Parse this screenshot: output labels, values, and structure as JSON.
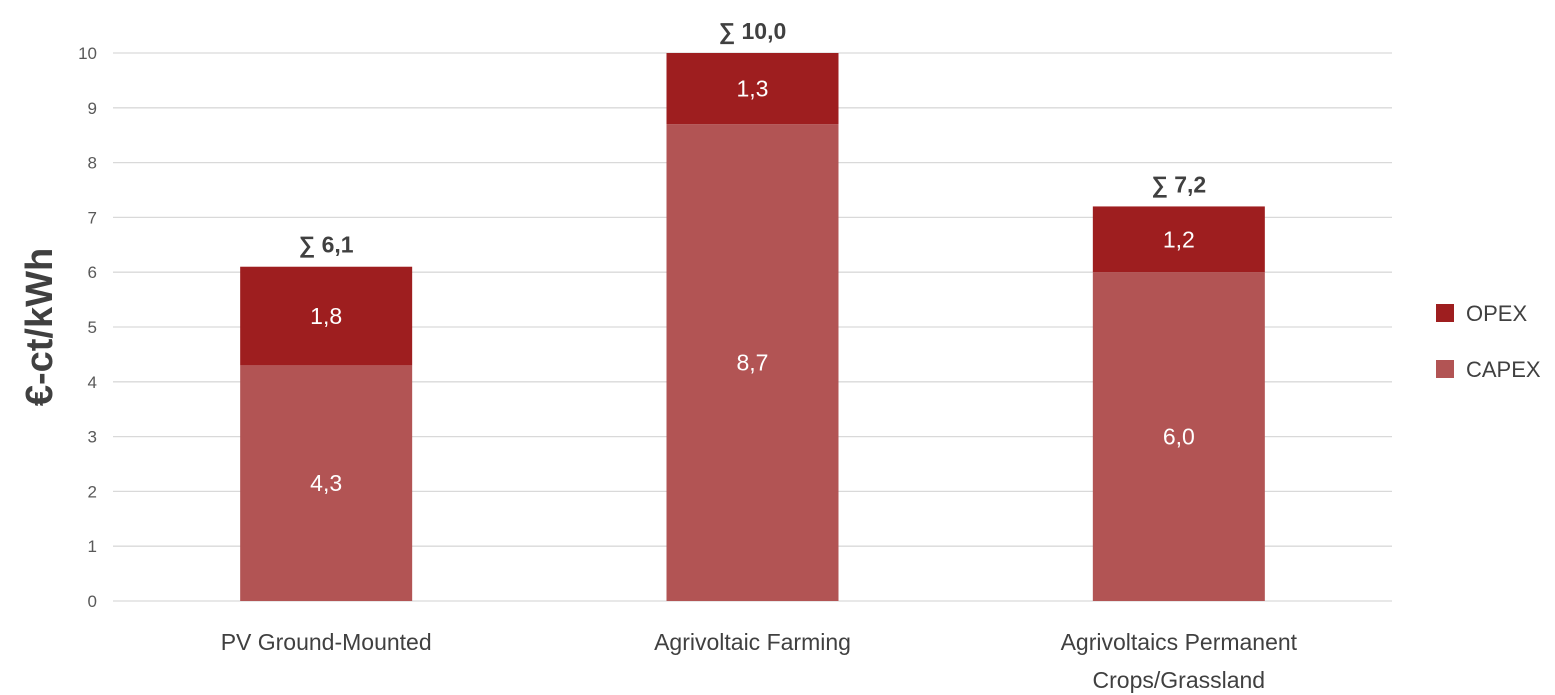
{
  "chart_data": {
    "type": "bar",
    "stacked": true,
    "ylabel": "€-ct/kWh",
    "ylim": [
      0,
      10
    ],
    "yticks": [
      "0",
      "1",
      "2",
      "3",
      "4",
      "5",
      "6",
      "7",
      "8",
      "9",
      "10"
    ],
    "grid": true,
    "legend_position": "right",
    "categories": [
      [
        "PV Ground-Mounted"
      ],
      [
        "Agrivoltaic Farming"
      ],
      [
        "Agrivoltaics Permanent",
        "Crops/Grassland"
      ]
    ],
    "series": [
      {
        "name": "CAPEX",
        "color": "#b25454",
        "values": [
          4.3,
          8.7,
          6.0
        ],
        "labels": [
          "4,3",
          "8,7",
          "6,0"
        ]
      },
      {
        "name": "OPEX",
        "color": "#9e1e1f",
        "values": [
          1.8,
          1.3,
          1.2
        ],
        "labels": [
          "1,8",
          "1,3",
          "1,2"
        ]
      }
    ],
    "totals": {
      "values": [
        6.1,
        10.0,
        7.2
      ],
      "labels": [
        "∑ 6,1",
        "∑ 10,0",
        "∑ 7,2"
      ]
    },
    "legend": [
      {
        "name": "OPEX",
        "color": "#9e1e1f"
      },
      {
        "name": "CAPEX",
        "color": "#b25454"
      }
    ]
  }
}
